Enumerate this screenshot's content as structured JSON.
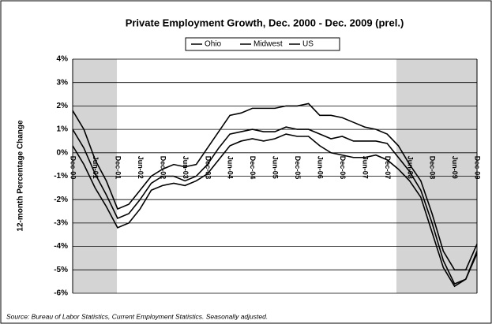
{
  "chart_data": {
    "type": "line",
    "title": "Private Employment Growth, Dec. 2000 - Dec. 2009 (prel.)",
    "y_label": "12-month Percentage Change",
    "source": "Source: Bureau of Labor Statistics, Current Employment Statistics. Seasonally adjusted.",
    "categories": [
      "Dec-00",
      null,
      "Jun-01",
      null,
      "Dec-01",
      null,
      "Jun-02",
      null,
      "Dec-02",
      null,
      "Jun-03",
      null,
      "Dec-03",
      null,
      "Jun-04",
      null,
      "Dec-04",
      null,
      "Jun-05",
      null,
      "Dec-05",
      null,
      "Jun-06",
      null,
      "Dec-06",
      null,
      "Jun-07",
      null,
      "Dec-07",
      null,
      "Jun-08",
      null,
      "Dec-08",
      null,
      "Jun-09",
      null,
      "Dec-09"
    ],
    "series": [
      {
        "name": "Ohio",
        "color": "#000000",
        "values": [
          0.3,
          -0.5,
          -1.5,
          -2.3,
          -3.2,
          -3.0,
          -2.4,
          -1.6,
          -1.4,
          -1.3,
          -1.4,
          -1.2,
          -0.9,
          -0.3,
          0.3,
          0.5,
          0.6,
          0.5,
          0.6,
          0.8,
          0.7,
          0.7,
          0.3,
          0.0,
          -0.1,
          -0.2,
          -0.2,
          -0.1,
          -0.3,
          -0.7,
          -1.2,
          -1.9,
          -3.4,
          -4.9,
          -5.7,
          -5.4,
          -4.3
        ]
      },
      {
        "name": "Midwest",
        "color": "#000000",
        "values": [
          1.0,
          0.2,
          -0.9,
          -1.8,
          -2.8,
          -2.6,
          -2.0,
          -1.3,
          -1.0,
          -1.0,
          -1.2,
          -1.0,
          -0.5,
          0.2,
          0.8,
          0.9,
          1.0,
          0.9,
          0.9,
          1.1,
          1.0,
          1.0,
          0.8,
          0.6,
          0.7,
          0.5,
          0.5,
          0.5,
          0.4,
          -0.2,
          -0.8,
          -1.6,
          -3.0,
          -4.6,
          -5.6,
          -5.4,
          -4.2
        ]
      },
      {
        "name": "US",
        "color": "#000000",
        "values": [
          1.8,
          1.0,
          -0.3,
          -1.2,
          -2.4,
          -2.2,
          -1.6,
          -1.0,
          -0.7,
          -0.5,
          -0.6,
          -0.5,
          0.2,
          0.9,
          1.6,
          1.7,
          1.9,
          1.9,
          1.9,
          2.0,
          2.0,
          2.1,
          1.6,
          1.6,
          1.5,
          1.3,
          1.1,
          1.0,
          0.8,
          0.3,
          -0.5,
          -1.2,
          -2.6,
          -4.2,
          -5.0,
          -5.0,
          -3.9
        ]
      }
    ],
    "ylim": [
      -6,
      4
    ],
    "yticks": [
      {
        "value": -6,
        "label": "-6%"
      },
      {
        "value": -5,
        "label": "-5%"
      },
      {
        "value": -4,
        "label": "-4%"
      },
      {
        "value": -3,
        "label": "-3%"
      },
      {
        "value": -2,
        "label": "-2%"
      },
      {
        "value": -1,
        "label": "-1%"
      },
      {
        "value": 0,
        "label": "0%"
      },
      {
        "value": 1,
        "label": "1%"
      },
      {
        "value": 2,
        "label": "2%"
      },
      {
        "value": 3,
        "label": "3%"
      },
      {
        "value": 4,
        "label": "4%"
      }
    ],
    "grid": true
  }
}
